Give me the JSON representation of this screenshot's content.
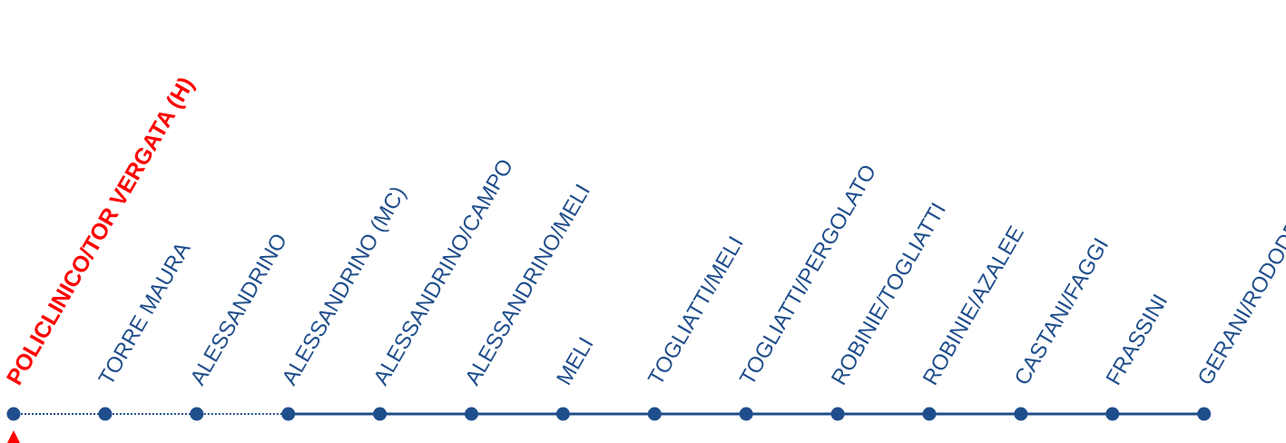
{
  "route": {
    "line_color": "#1f4e8c",
    "highlight_color": "#ff0000",
    "current_marker": {
      "stop_index": 0,
      "icon": "triangle-up-icon"
    },
    "stops": [
      {
        "name": "POLICLINICO/TOR VERGATA (H)",
        "terminus": true,
        "segment_after": "dotted"
      },
      {
        "name": "TORRE MAURA",
        "terminus": false,
        "segment_after": "dotted"
      },
      {
        "name": "ALESSANDRINO",
        "terminus": false,
        "segment_after": "dotted"
      },
      {
        "name": "ALESSANDRINO (MC)",
        "terminus": false,
        "segment_after": "solid"
      },
      {
        "name": "ALESSANDRINO/CAMPO",
        "terminus": false,
        "segment_after": "solid"
      },
      {
        "name": "ALESSANDRINO/MELI",
        "terminus": false,
        "segment_after": "solid"
      },
      {
        "name": "MELI",
        "terminus": false,
        "segment_after": "solid"
      },
      {
        "name": "TOGLIATTI/MELI",
        "terminus": false,
        "segment_after": "solid"
      },
      {
        "name": "TOGLIATTI/PERGOLATO",
        "terminus": false,
        "segment_after": "solid"
      },
      {
        "name": "ROBINIE/TOGLIATTI",
        "terminus": false,
        "segment_after": "solid"
      },
      {
        "name": "ROBINIE/AZALEE",
        "terminus": false,
        "segment_after": "solid"
      },
      {
        "name": "CASTANI/FAGGI",
        "terminus": false,
        "segment_after": "solid"
      },
      {
        "name": "FRASSINI",
        "terminus": false,
        "segment_after": "solid"
      },
      {
        "name": "GERANI/RODODENDRI",
        "terminus": false,
        "segment_after": null
      }
    ]
  }
}
